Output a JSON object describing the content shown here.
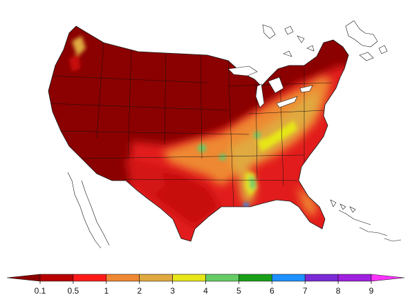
{
  "legend": {
    "tick_labels": [
      "0.1",
      "0.5",
      "1",
      "2",
      "3",
      "4",
      "5",
      "6",
      "7",
      "8",
      "9"
    ],
    "colors": [
      "#8b0000",
      "#b80000",
      "#ff1a1a",
      "#ee8833",
      "#e0aa40",
      "#e6e619",
      "#66cc66",
      "#19a019",
      "#1e90ff",
      "#7a2ad6",
      "#a020e0",
      "#ff33ff"
    ],
    "extend": "both"
  },
  "map": {
    "region": "contiguous-united-states",
    "palette": {
      "darkest": "#8b0000",
      "dark": "#a50808",
      "red": "#e21a1a",
      "orange": "#ee8833",
      "tan": "#e0aa40",
      "yellow": "#e6e619",
      "green": "#66cc66",
      "blue": "#1e90ff",
      "outline": "#111111"
    }
  }
}
